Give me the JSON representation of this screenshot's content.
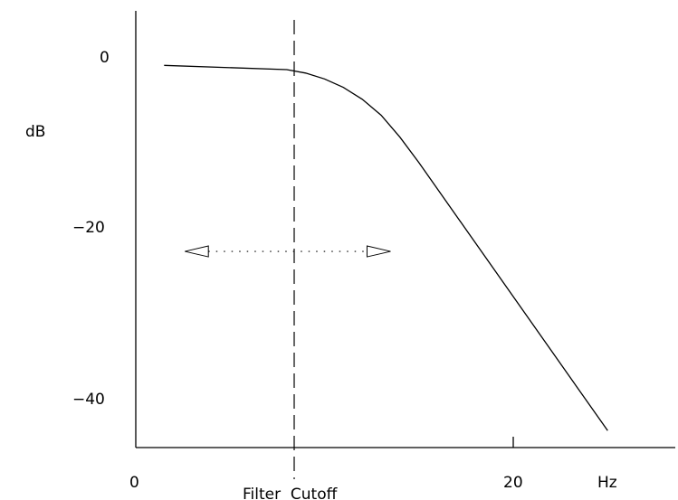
{
  "chart_data": {
    "type": "line",
    "ylabel": "dB",
    "xlabel": "Hz",
    "yticks": [
      {
        "value": 0,
        "label": "0"
      },
      {
        "value": -20,
        "label": "−20"
      },
      {
        "value": -40,
        "label": "−40"
      }
    ],
    "xticks": [
      {
        "value": 0,
        "label": "0"
      },
      {
        "value": 20,
        "label": "20"
      }
    ],
    "ylim": [
      -45,
      6
    ],
    "xlim": [
      0,
      27.5
    ],
    "cutoff": {
      "x": 8,
      "label": "Filter  Cutoff"
    },
    "series": [
      {
        "x": [
          1.5,
          8,
          9,
          10,
          11,
          12,
          13,
          14,
          15,
          25
        ],
        "y": [
          -1,
          -1.5,
          -1.9,
          -2.6,
          -3.6,
          -5.0,
          -6.9,
          -9.5,
          -12.5,
          -44.2
        ]
      }
    ],
    "annotation": {
      "type": "double-arrow",
      "x_from": 2.6,
      "x_to": 13.5,
      "y": -23
    }
  }
}
